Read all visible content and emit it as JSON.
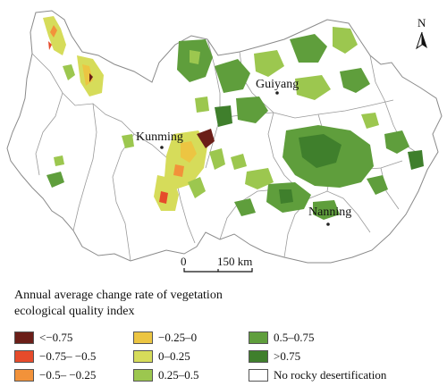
{
  "legend": {
    "title_line1": "Annual average change rate of vegetation",
    "title_line2": "ecological quality index",
    "items": [
      {
        "label": "<−0.75",
        "color": "#6b1e18"
      },
      {
        "label": "−0.75– −0.5",
        "color": "#e64b2b"
      },
      {
        "label": "−0.5– −0.25",
        "color": "#f2923a"
      },
      {
        "label": "−0.25–0",
        "color": "#ecc542"
      },
      {
        "label": "0–0.25",
        "color": "#d6dc5a"
      },
      {
        "label": "0.25–0.5",
        "color": "#9cc74f"
      },
      {
        "label": "0.5–0.75",
        "color": "#5f9e3c"
      },
      {
        "label": ">0.75",
        "color": "#3f7f2c"
      },
      {
        "label": "No rocky desertification",
        "color": "#ffffff"
      }
    ]
  },
  "cities": {
    "guiyang": "Guiyang",
    "kunming": "Kunming",
    "nanning": "Nanning"
  },
  "scale_bar": {
    "zero": "0",
    "distance": "150 km"
  },
  "north_arrow": {
    "label": "N"
  }
}
